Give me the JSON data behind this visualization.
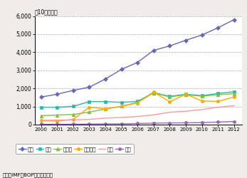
{
  "years": [
    2000,
    2001,
    2002,
    2003,
    2004,
    2005,
    2006,
    2007,
    2008,
    2009,
    2010,
    2011,
    2012
  ],
  "usa": [
    1520,
    1680,
    1890,
    2070,
    2520,
    3050,
    3440,
    4100,
    4350,
    4660,
    4950,
    5350,
    5800
  ],
  "uk": [
    960,
    960,
    1010,
    1270,
    1270,
    1230,
    1280,
    1770,
    1560,
    1680,
    1600,
    1720,
    1820
  ],
  "germany": [
    490,
    530,
    560,
    690,
    860,
    1010,
    1230,
    1750,
    1530,
    1650,
    1570,
    1650,
    1710
  ],
  "france": [
    220,
    190,
    290,
    960,
    870,
    1010,
    1200,
    1800,
    1260,
    1680,
    1310,
    1280,
    1530
  ],
  "japan": [
    230,
    250,
    260,
    290,
    360,
    390,
    450,
    540,
    680,
    740,
    830,
    960,
    1050
  ],
  "korea": [
    20,
    20,
    20,
    30,
    40,
    40,
    60,
    80,
    90,
    100,
    110,
    140,
    170
  ],
  "series_colors": {
    "usa": "#6666bb",
    "uk": "#22bbaa",
    "germany": "#88bb44",
    "france": "#ffaa00",
    "japan": "#ff9999",
    "korea": "#9966bb"
  },
  "series_labels": {
    "usa": "米国",
    "uk": "英国",
    "germany": "ドイツ",
    "france": "フランス",
    "japan": "日本",
    "korea": "韓国"
  },
  "ylabel": "（10億ドル）",
  "ylim": [
    0,
    6000
  ],
  "yticks": [
    0,
    1000,
    2000,
    3000,
    4000,
    5000,
    6000
  ],
  "source": "資料：IMF「BOP」から作成。",
  "bg_color": "#f0ede8",
  "plot_bg": "#ffffff"
}
